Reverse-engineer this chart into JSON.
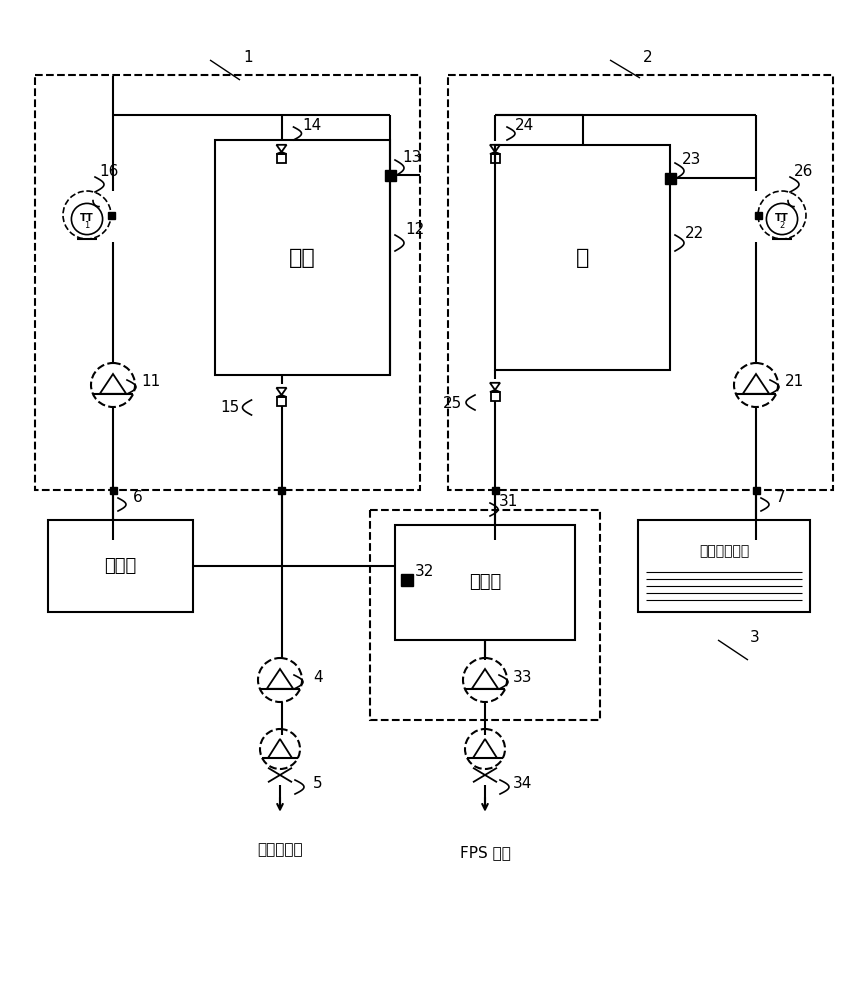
{
  "bg_color": "#ffffff",
  "box1_label": "甲醇",
  "box2_label": "水",
  "box3_label": "纯甲醇",
  "box4_label": "甲醇水",
  "box5_label": "燃料电池水箱",
  "bottom_label1": "燃烧室润液",
  "bottom_label2": "FPS 液液",
  "tt1_label": "TT\n1",
  "tt2_label": "TT\n2",
  "label1": "1",
  "label2": "2",
  "label3": "3",
  "label4": "4",
  "label5": "5",
  "label6": "6",
  "label7": "7",
  "label11": "11",
  "label12": "12",
  "label13": "13",
  "label14": "14",
  "label15": "15",
  "label16": "16",
  "label21": "21",
  "label22": "22",
  "label23": "23",
  "label24": "24",
  "label25": "25",
  "label26": "26",
  "label31": "31",
  "label32": "32",
  "label33": "33",
  "label34": "34"
}
